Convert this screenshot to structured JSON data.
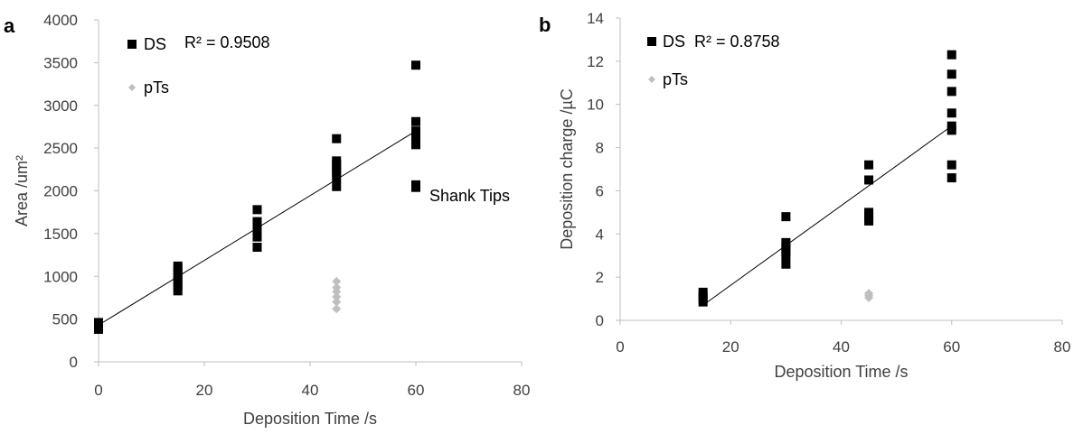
{
  "colors": {
    "ds": "#000000",
    "pts": "#bfbfbf",
    "axis": "#bfbfbf",
    "text": "#404040"
  },
  "chart_data": [
    {
      "panel_label": "a",
      "type": "scatter",
      "xlabel": "Deposition Time /s",
      "ylabel": "Area /um²",
      "xlim": [
        0,
        80
      ],
      "ylim": [
        0,
        4000
      ],
      "xticks": [
        0,
        20,
        40,
        60,
        80
      ],
      "yticks": [
        0,
        500,
        1000,
        1500,
        2000,
        2500,
        3000,
        3500,
        4000
      ],
      "grid": false,
      "legend_position": "top-left",
      "r2_text": "R² = 0.9508",
      "annotation": "Shank Tips",
      "series": [
        {
          "name": "DS",
          "marker": "square",
          "points": [
            [
              0,
              380
            ],
            [
              0,
              430
            ],
            [
              0,
              460
            ],
            [
              15,
              830
            ],
            [
              15,
              880
            ],
            [
              15,
              930
            ],
            [
              15,
              980
            ],
            [
              15,
              1030
            ],
            [
              15,
              1080
            ],
            [
              15,
              1120
            ],
            [
              30,
              1340
            ],
            [
              30,
              1460
            ],
            [
              30,
              1520
            ],
            [
              30,
              1580
            ],
            [
              30,
              1640
            ],
            [
              30,
              1780
            ],
            [
              45,
              2050
            ],
            [
              45,
              2150
            ],
            [
              45,
              2220
            ],
            [
              45,
              2260
            ],
            [
              45,
              2310
            ],
            [
              45,
              2350
            ],
            [
              45,
              2610
            ],
            [
              60,
              2040
            ],
            [
              60,
              2070
            ],
            [
              60,
              2540
            ],
            [
              60,
              2600
            ],
            [
              60,
              2650
            ],
            [
              60,
              2700
            ],
            [
              60,
              2810
            ],
            [
              60,
              3470
            ]
          ]
        },
        {
          "name": "pTs",
          "marker": "diamond",
          "points": [
            [
              45,
              620
            ],
            [
              45,
              700
            ],
            [
              45,
              760
            ],
            [
              45,
              820
            ],
            [
              45,
              870
            ],
            [
              45,
              940
            ]
          ]
        }
      ],
      "trendline": {
        "series": "DS",
        "x": [
          0,
          60
        ],
        "y": [
          430,
          2700
        ]
      }
    },
    {
      "panel_label": "b",
      "type": "scatter",
      "xlabel": "Deposition Time /s",
      "ylabel": "Deposition charge /µC",
      "xlim": [
        0,
        80
      ],
      "ylim": [
        0,
        14
      ],
      "xticks": [
        0,
        20,
        40,
        60,
        80
      ],
      "yticks": [
        0,
        2,
        4,
        6,
        8,
        10,
        12,
        14
      ],
      "grid": false,
      "legend_position": "top-left",
      "r2_text": "R² = 0.8758",
      "series": [
        {
          "name": "DS",
          "marker": "square",
          "points": [
            [
              15,
              0.85
            ],
            [
              15,
              1.0
            ],
            [
              15,
              1.15
            ],
            [
              15,
              1.3
            ],
            [
              30,
              2.6
            ],
            [
              30,
              3.0
            ],
            [
              30,
              3.2
            ],
            [
              30,
              3.4
            ],
            [
              30,
              3.6
            ],
            [
              30,
              4.8
            ],
            [
              45,
              4.6
            ],
            [
              45,
              4.8
            ],
            [
              45,
              5.0
            ],
            [
              45,
              6.5
            ],
            [
              45,
              7.2
            ],
            [
              60,
              6.6
            ],
            [
              60,
              7.2
            ],
            [
              60,
              8.8
            ],
            [
              60,
              9.0
            ],
            [
              60,
              9.6
            ],
            [
              60,
              10.6
            ],
            [
              60,
              11.4
            ],
            [
              60,
              12.3
            ]
          ]
        },
        {
          "name": "pTs",
          "marker": "diamond",
          "points": [
            [
              45,
              1.05
            ],
            [
              45,
              1.15
            ],
            [
              45,
              1.25
            ]
          ]
        }
      ],
      "trendline": {
        "series": "DS",
        "x": [
          15,
          60
        ],
        "y": [
          0.7,
          9.0
        ]
      }
    }
  ]
}
